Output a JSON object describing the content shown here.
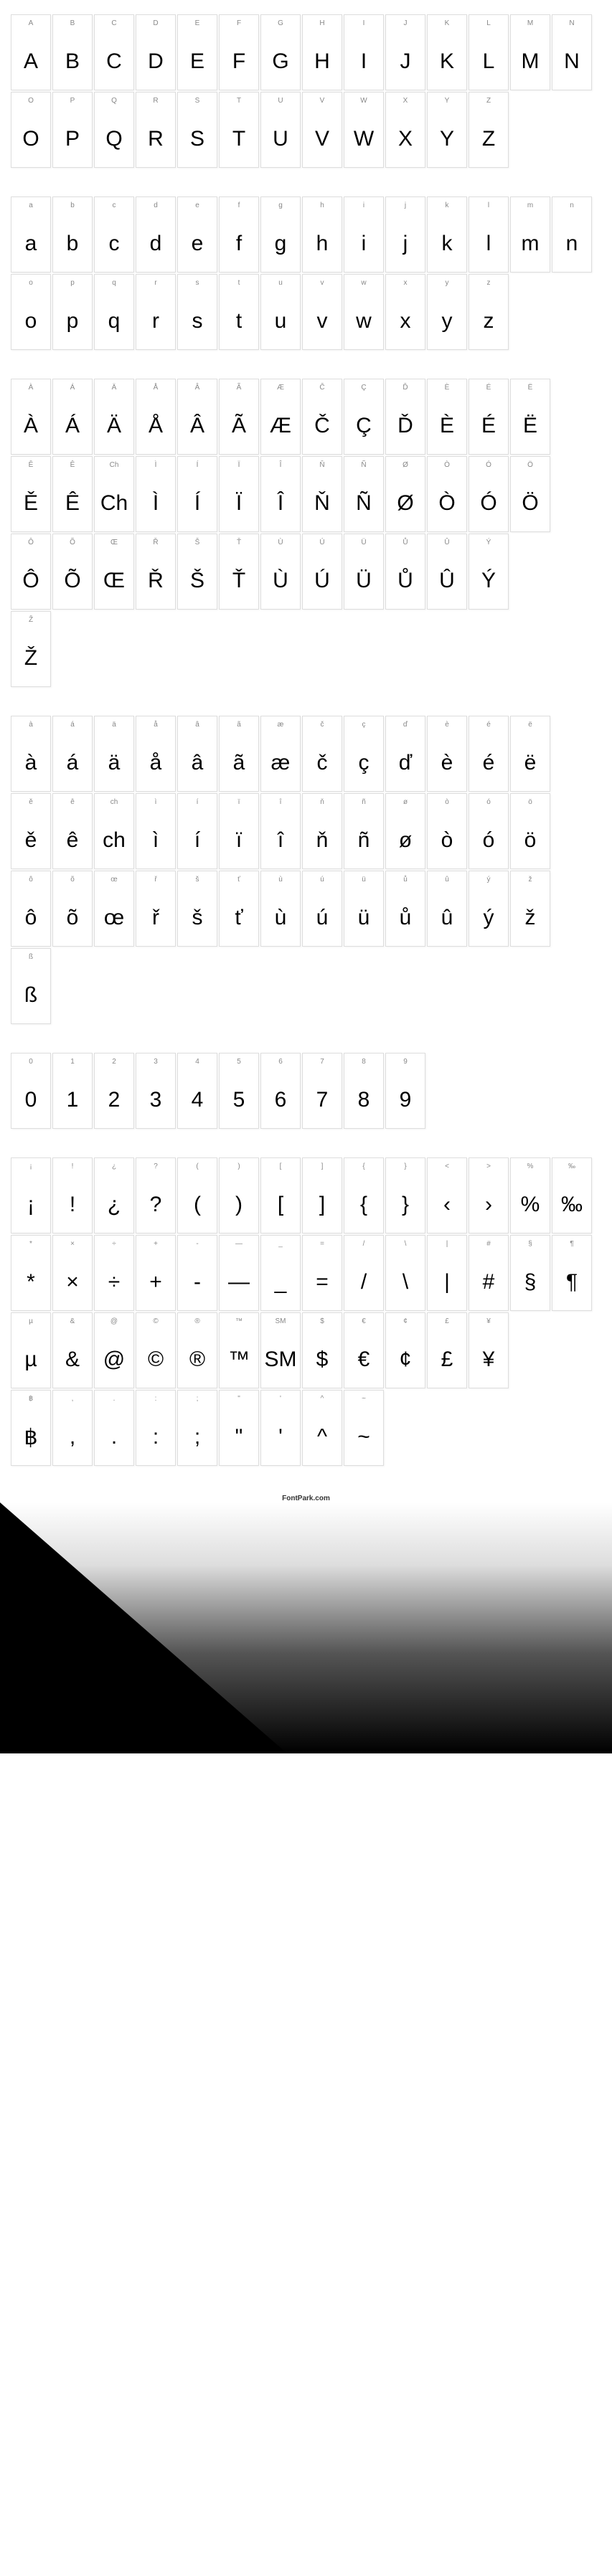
{
  "footer": "FontPark.com",
  "cell_style": {
    "width": 56,
    "height": 106,
    "border_color": "#dddddd",
    "label_color": "#888888",
    "label_fontsize": 10,
    "glyph_fontsize": 30,
    "glyph_color": "#000000",
    "background": "#ffffff"
  },
  "sections": [
    {
      "name": "uppercase",
      "rows": [
        [
          {
            "label": "A",
            "char": "A"
          },
          {
            "label": "B",
            "char": "B"
          },
          {
            "label": "C",
            "char": "C"
          },
          {
            "label": "D",
            "char": "D"
          },
          {
            "label": "E",
            "char": "E"
          },
          {
            "label": "F",
            "char": "F"
          },
          {
            "label": "G",
            "char": "G"
          },
          {
            "label": "H",
            "char": "H"
          },
          {
            "label": "I",
            "char": "I"
          },
          {
            "label": "J",
            "char": "J"
          },
          {
            "label": "K",
            "char": "K"
          },
          {
            "label": "L",
            "char": "L"
          },
          {
            "label": "M",
            "char": "M"
          },
          {
            "label": "N",
            "char": "N"
          }
        ],
        [
          {
            "label": "O",
            "char": "O"
          },
          {
            "label": "P",
            "char": "P"
          },
          {
            "label": "Q",
            "char": "Q"
          },
          {
            "label": "R",
            "char": "R"
          },
          {
            "label": "S",
            "char": "S"
          },
          {
            "label": "T",
            "char": "T"
          },
          {
            "label": "U",
            "char": "U"
          },
          {
            "label": "V",
            "char": "V"
          },
          {
            "label": "W",
            "char": "W"
          },
          {
            "label": "X",
            "char": "X"
          },
          {
            "label": "Y",
            "char": "Y"
          },
          {
            "label": "Z",
            "char": "Z"
          }
        ]
      ]
    },
    {
      "name": "lowercase",
      "rows": [
        [
          {
            "label": "a",
            "char": "a"
          },
          {
            "label": "b",
            "char": "b"
          },
          {
            "label": "c",
            "char": "c"
          },
          {
            "label": "d",
            "char": "d"
          },
          {
            "label": "e",
            "char": "e"
          },
          {
            "label": "f",
            "char": "f"
          },
          {
            "label": "g",
            "char": "g"
          },
          {
            "label": "h",
            "char": "h"
          },
          {
            "label": "i",
            "char": "i"
          },
          {
            "label": "j",
            "char": "j"
          },
          {
            "label": "k",
            "char": "k"
          },
          {
            "label": "l",
            "char": "l"
          },
          {
            "label": "m",
            "char": "m"
          },
          {
            "label": "n",
            "char": "n"
          }
        ],
        [
          {
            "label": "o",
            "char": "o"
          },
          {
            "label": "p",
            "char": "p"
          },
          {
            "label": "q",
            "char": "q"
          },
          {
            "label": "r",
            "char": "r"
          },
          {
            "label": "s",
            "char": "s"
          },
          {
            "label": "t",
            "char": "t"
          },
          {
            "label": "u",
            "char": "u"
          },
          {
            "label": "v",
            "char": "v"
          },
          {
            "label": "w",
            "char": "w"
          },
          {
            "label": "x",
            "char": "x"
          },
          {
            "label": "y",
            "char": "y"
          },
          {
            "label": "z",
            "char": "z"
          }
        ]
      ]
    },
    {
      "name": "uppercase-accents",
      "rows": [
        [
          {
            "label": "À",
            "char": "À"
          },
          {
            "label": "Á",
            "char": "Á"
          },
          {
            "label": "Ä",
            "char": "Ä"
          },
          {
            "label": "Å",
            "char": "Å"
          },
          {
            "label": "Â",
            "char": "Â"
          },
          {
            "label": "Ã",
            "char": "Ã"
          },
          {
            "label": "Æ",
            "char": "Æ"
          },
          {
            "label": "Č",
            "char": "Č"
          },
          {
            "label": "Ç",
            "char": "Ç"
          },
          {
            "label": "Ď",
            "char": "Ď"
          },
          {
            "label": "È",
            "char": "È"
          },
          {
            "label": "É",
            "char": "É"
          },
          {
            "label": "Ë",
            "char": "Ë"
          }
        ],
        [
          {
            "label": "Ě",
            "char": "Ě"
          },
          {
            "label": "Ê",
            "char": "Ê"
          },
          {
            "label": "Ch",
            "char": "Ch"
          },
          {
            "label": "Ì",
            "char": "Ì"
          },
          {
            "label": "Í",
            "char": "Í"
          },
          {
            "label": "Ï",
            "char": "Ï"
          },
          {
            "label": "Î",
            "char": "Î"
          },
          {
            "label": "Ň",
            "char": "Ň"
          },
          {
            "label": "Ñ",
            "char": "Ñ"
          },
          {
            "label": "Ø",
            "char": "Ø"
          },
          {
            "label": "Ò",
            "char": "Ò"
          },
          {
            "label": "Ó",
            "char": "Ó"
          },
          {
            "label": "Ö",
            "char": "Ö"
          }
        ],
        [
          {
            "label": "Ô",
            "char": "Ô"
          },
          {
            "label": "Õ",
            "char": "Õ"
          },
          {
            "label": "Œ",
            "char": "Œ"
          },
          {
            "label": "Ř",
            "char": "Ř"
          },
          {
            "label": "Š",
            "char": "Š"
          },
          {
            "label": "Ť",
            "char": "Ť"
          },
          {
            "label": "Ù",
            "char": "Ù"
          },
          {
            "label": "Ú",
            "char": "Ú"
          },
          {
            "label": "Ü",
            "char": "Ü"
          },
          {
            "label": "Ů",
            "char": "Ů"
          },
          {
            "label": "Û",
            "char": "Û"
          },
          {
            "label": "Ý",
            "char": "Ý"
          }
        ],
        [
          {
            "label": "Ž",
            "char": "Ž"
          }
        ]
      ]
    },
    {
      "name": "lowercase-accents",
      "rows": [
        [
          {
            "label": "à",
            "char": "à"
          },
          {
            "label": "á",
            "char": "á"
          },
          {
            "label": "ä",
            "char": "ä"
          },
          {
            "label": "å",
            "char": "å"
          },
          {
            "label": "â",
            "char": "â"
          },
          {
            "label": "ã",
            "char": "ã"
          },
          {
            "label": "æ",
            "char": "æ"
          },
          {
            "label": "č",
            "char": "č"
          },
          {
            "label": "ç",
            "char": "ç"
          },
          {
            "label": "ď",
            "char": "ď"
          },
          {
            "label": "è",
            "char": "è"
          },
          {
            "label": "é",
            "char": "é"
          },
          {
            "label": "ë",
            "char": "ë"
          }
        ],
        [
          {
            "label": "ě",
            "char": "ě"
          },
          {
            "label": "ê",
            "char": "ê"
          },
          {
            "label": "ch",
            "char": "ch"
          },
          {
            "label": "ì",
            "char": "ì"
          },
          {
            "label": "í",
            "char": "í"
          },
          {
            "label": "ï",
            "char": "ï"
          },
          {
            "label": "î",
            "char": "î"
          },
          {
            "label": "ň",
            "char": "ň"
          },
          {
            "label": "ñ",
            "char": "ñ"
          },
          {
            "label": "ø",
            "char": "ø"
          },
          {
            "label": "ò",
            "char": "ò"
          },
          {
            "label": "ó",
            "char": "ó"
          },
          {
            "label": "ö",
            "char": "ö"
          }
        ],
        [
          {
            "label": "ô",
            "char": "ô"
          },
          {
            "label": "õ",
            "char": "õ"
          },
          {
            "label": "œ",
            "char": "œ"
          },
          {
            "label": "ř",
            "char": "ř"
          },
          {
            "label": "š",
            "char": "š"
          },
          {
            "label": "ť",
            "char": "ť"
          },
          {
            "label": "ù",
            "char": "ù"
          },
          {
            "label": "ú",
            "char": "ú"
          },
          {
            "label": "ü",
            "char": "ü"
          },
          {
            "label": "ů",
            "char": "ů"
          },
          {
            "label": "û",
            "char": "û"
          },
          {
            "label": "ý",
            "char": "ý"
          },
          {
            "label": "ž",
            "char": "ž"
          }
        ],
        [
          {
            "label": "ß",
            "char": "ß"
          }
        ]
      ]
    },
    {
      "name": "digits",
      "rows": [
        [
          {
            "label": "0",
            "char": "0"
          },
          {
            "label": "1",
            "char": "1"
          },
          {
            "label": "2",
            "char": "2"
          },
          {
            "label": "3",
            "char": "3"
          },
          {
            "label": "4",
            "char": "4"
          },
          {
            "label": "5",
            "char": "5"
          },
          {
            "label": "6",
            "char": "6"
          },
          {
            "label": "7",
            "char": "7"
          },
          {
            "label": "8",
            "char": "8"
          },
          {
            "label": "9",
            "char": "9"
          }
        ]
      ]
    },
    {
      "name": "symbols",
      "rows": [
        [
          {
            "label": "¡",
            "char": "¡"
          },
          {
            "label": "!",
            "char": "!"
          },
          {
            "label": "¿",
            "char": "¿"
          },
          {
            "label": "?",
            "char": "?"
          },
          {
            "label": "(",
            "char": "("
          },
          {
            "label": ")",
            "char": ")"
          },
          {
            "label": "[",
            "char": "["
          },
          {
            "label": "]",
            "char": "]"
          },
          {
            "label": "{",
            "char": "{"
          },
          {
            "label": "}",
            "char": "}"
          },
          {
            "label": "<",
            "char": "‹"
          },
          {
            "label": ">",
            "char": "›"
          },
          {
            "label": "%",
            "char": "%"
          },
          {
            "label": "‰",
            "char": "‰"
          }
        ],
        [
          {
            "label": "*",
            "char": "*"
          },
          {
            "label": "×",
            "char": "×"
          },
          {
            "label": "÷",
            "char": "÷"
          },
          {
            "label": "+",
            "char": "+"
          },
          {
            "label": "-",
            "char": "-"
          },
          {
            "label": "—",
            "char": "—"
          },
          {
            "label": "_",
            "char": "_"
          },
          {
            "label": "=",
            "char": "="
          },
          {
            "label": "/",
            "char": "/"
          },
          {
            "label": "\\",
            "char": "\\"
          },
          {
            "label": "|",
            "char": "|"
          },
          {
            "label": "#",
            "char": "#"
          },
          {
            "label": "§",
            "char": "§"
          },
          {
            "label": "¶",
            "char": "¶"
          }
        ],
        [
          {
            "label": "µ",
            "char": "µ"
          },
          {
            "label": "&",
            "char": "&"
          },
          {
            "label": "@",
            "char": "@"
          },
          {
            "label": "©",
            "char": "©"
          },
          {
            "label": "®",
            "char": "®"
          },
          {
            "label": "™",
            "char": "™"
          },
          {
            "label": "SM",
            "char": "SM"
          },
          {
            "label": "$",
            "char": "$"
          },
          {
            "label": "€",
            "char": "€"
          },
          {
            "label": "¢",
            "char": "¢"
          },
          {
            "label": "£",
            "char": "£"
          },
          {
            "label": "¥",
            "char": "¥"
          }
        ],
        [
          {
            "label": "฿",
            "char": "฿"
          },
          {
            "label": ",",
            "char": ","
          },
          {
            "label": ".",
            "char": "."
          },
          {
            "label": ":",
            "char": ":"
          },
          {
            "label": ";",
            "char": ";"
          },
          {
            "label": "\"",
            "char": "\""
          },
          {
            "label": "'",
            "char": "'"
          },
          {
            "label": "^",
            "char": "^"
          },
          {
            "label": "~",
            "char": "~"
          }
        ]
      ]
    }
  ]
}
